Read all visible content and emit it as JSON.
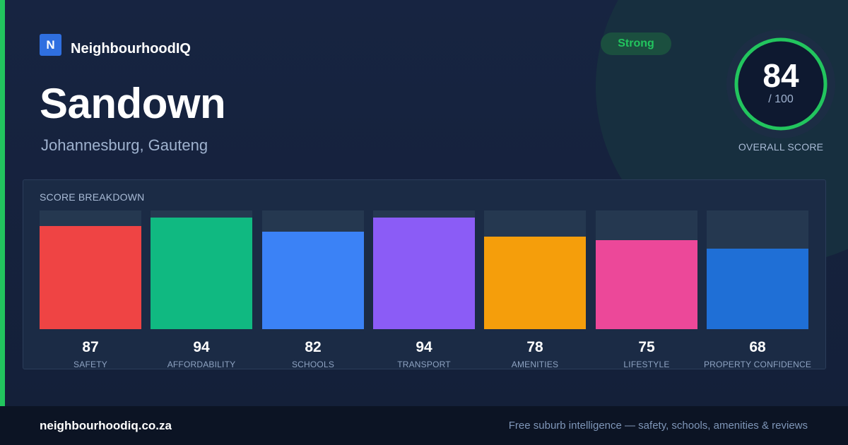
{
  "brand": {
    "logo_letter": "N",
    "name": "NeighbourhoodIQ"
  },
  "suburb": {
    "name": "Sandown",
    "location": "Johannesburg, Gauteng"
  },
  "badge": {
    "label": "Strong",
    "color": "#22c55e"
  },
  "overall": {
    "score": "84",
    "max_label": "/ 100",
    "caption": "OVERALL SCORE",
    "max": 100,
    "ring_color": "#22c55e"
  },
  "breakdown": {
    "title": "SCORE BREAKDOWN"
  },
  "chart_data": {
    "type": "bar",
    "ylim": [
      0,
      100
    ],
    "categories": [
      "SAFETY",
      "AFFORDABILITY",
      "SCHOOLS",
      "TRANSPORT",
      "AMENITIES",
      "LIFESTYLE",
      "PROPERTY CONFIDENCE"
    ],
    "values": [
      87,
      94,
      82,
      94,
      78,
      75,
      68
    ],
    "colors": [
      "#ef4444",
      "#10b981",
      "#3b82f6",
      "#8b5cf6",
      "#f59e0b",
      "#ec4899",
      "#1f6fd6"
    ]
  },
  "footer": {
    "url": "neighbourhoodiq.co.za",
    "tagline": "Free suburb intelligence — safety, schools, amenities & reviews"
  }
}
